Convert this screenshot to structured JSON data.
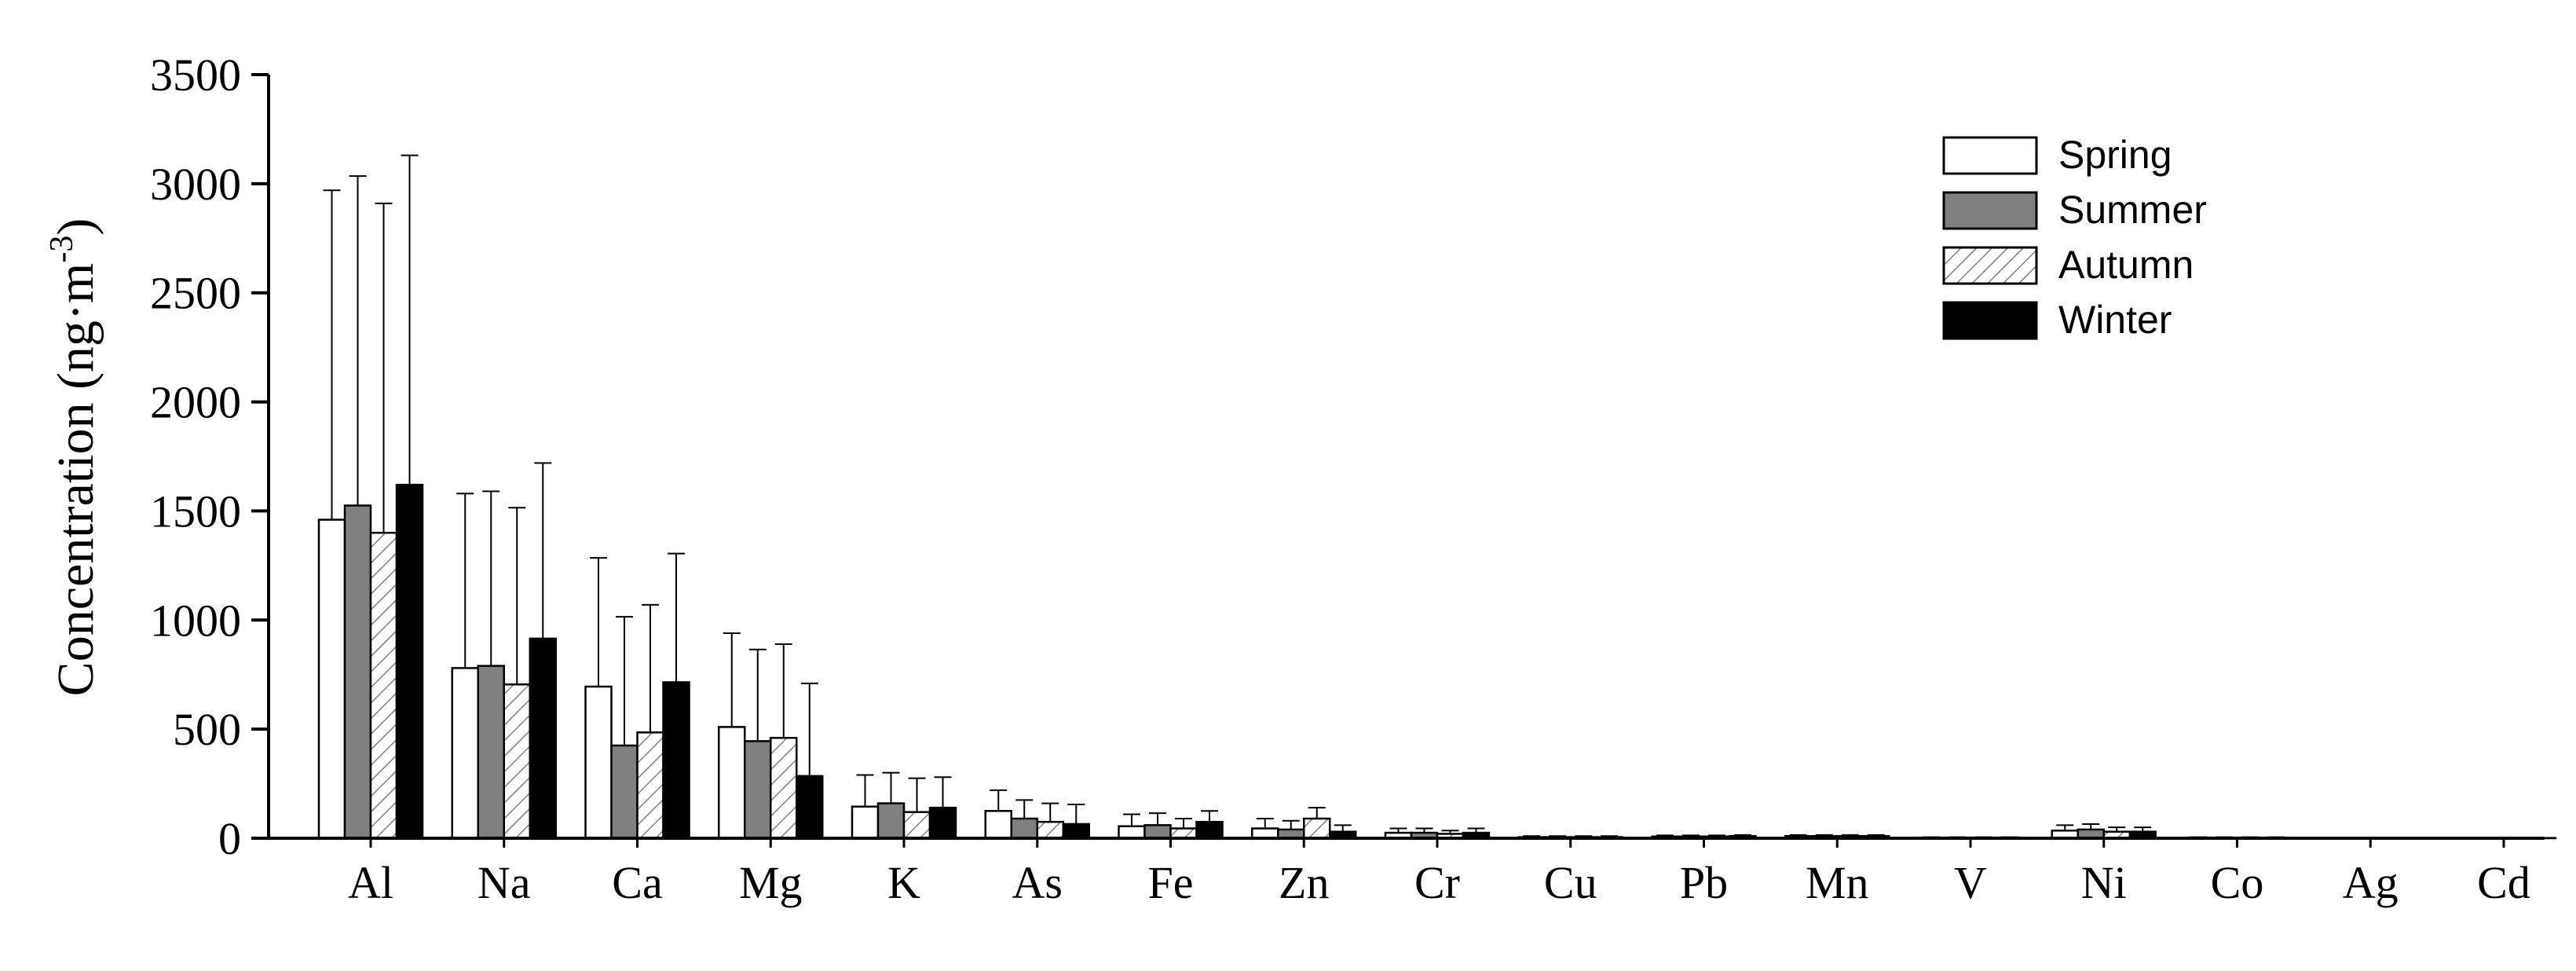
{
  "chart_data": {
    "type": "bar",
    "title": "",
    "xlabel": "",
    "ylabel": "Concentration (ng·m",
    "ylabel_sup": "-3",
    "ylabel_close": ")",
    "ylim": [
      0,
      3500
    ],
    "yticks": [
      0,
      500,
      1000,
      1500,
      2000,
      2500,
      3000,
      3500
    ],
    "grid": false,
    "legend_position": "top-right",
    "categories": [
      "Al",
      "Na",
      "Ca",
      "Mg",
      "K",
      "As",
      "Fe",
      "Zn",
      "Cr",
      "Cu",
      "Pb",
      "Mn",
      "V",
      "Ni",
      "Co",
      "Ag",
      "Cd"
    ],
    "series": [
      {
        "name": "Spring",
        "pattern": "white",
        "values": [
          1460,
          780,
          695,
          510,
          145,
          125,
          55,
          45,
          25,
          5,
          8,
          10,
          3,
          35,
          3,
          2,
          1
        ],
        "error": [
          1510,
          800,
          590,
          430,
          145,
          95,
          55,
          45,
          20,
          5,
          5,
          5,
          2,
          25,
          2,
          1,
          1
        ]
      },
      {
        "name": "Summer",
        "pattern": "gray",
        "values": [
          1525,
          790,
          425,
          445,
          160,
          90,
          60,
          40,
          25,
          5,
          8,
          10,
          3,
          40,
          3,
          2,
          1
        ],
        "error": [
          1510,
          800,
          590,
          420,
          140,
          85,
          55,
          40,
          20,
          5,
          5,
          5,
          2,
          25,
          2,
          1,
          1
        ]
      },
      {
        "name": "Autumn",
        "pattern": "hatch",
        "values": [
          1400,
          705,
          485,
          460,
          120,
          75,
          45,
          90,
          20,
          5,
          8,
          10,
          3,
          30,
          3,
          2,
          1
        ],
        "error": [
          1510,
          810,
          585,
          430,
          155,
          85,
          45,
          50,
          15,
          5,
          5,
          5,
          2,
          20,
          2,
          1,
          1
        ]
      },
      {
        "name": "Winter",
        "pattern": "black",
        "values": [
          1620,
          915,
          715,
          285,
          140,
          65,
          75,
          30,
          25,
          5,
          10,
          10,
          3,
          30,
          3,
          2,
          1
        ],
        "error": [
          1510,
          805,
          590,
          425,
          140,
          90,
          50,
          30,
          20,
          5,
          5,
          5,
          2,
          20,
          2,
          1,
          1
        ]
      }
    ]
  },
  "colors": {
    "spring": "#ffffff",
    "summer": "#808080",
    "autumn_hatch": "#808080",
    "winter": "#000000",
    "axis": "#000000"
  }
}
